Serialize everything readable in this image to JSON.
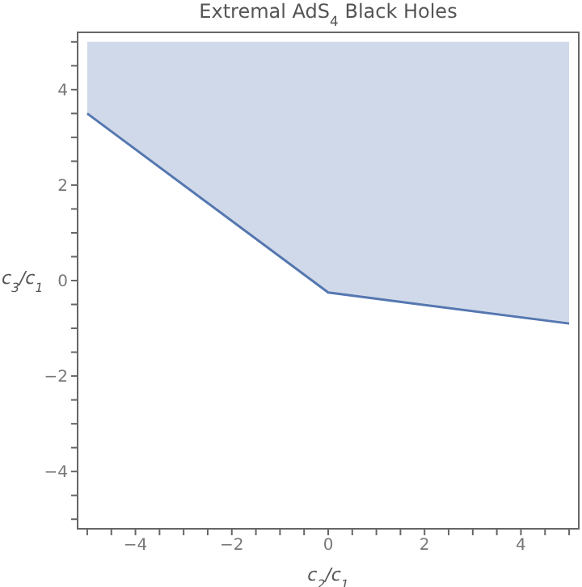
{
  "chart_data": {
    "type": "line",
    "title": "Extremal AdS$_{4}$ Black Holes",
    "xlabel": "c$_{2}$/c$_{1}$",
    "ylabel": "c$_{3}$/c$_{1}$",
    "x": [
      -5,
      0,
      5
    ],
    "series": [
      {
        "color": "#5577b0",
        "values": [
          3.5,
          -0.25,
          -0.9
        ],
        "lower": [
          3.5,
          -0.25,
          -0.9
        ],
        "upper": [
          5,
          5,
          5
        ]
      }
    ],
    "xlim": [
      -5.2,
      5.2
    ],
    "ylim": [
      -5.2,
      5.2
    ],
    "xticks": [
      {
        "value": -5,
        "label": null
      },
      {
        "value": -4.5,
        "label": null
      },
      -4,
      {
        "value": -3.5,
        "label": null
      },
      {
        "value": -3,
        "label": null
      },
      {
        "value": -2.5,
        "label": null
      },
      -2,
      {
        "value": -1.5,
        "label": null
      },
      {
        "value": -1,
        "label": null
      },
      {
        "value": -0.5,
        "label": null
      },
      0,
      {
        "value": 0.5,
        "label": null
      },
      {
        "value": 1,
        "label": null
      },
      {
        "value": 1.5,
        "label": null
      },
      2,
      {
        "value": 2.5,
        "label": null
      },
      {
        "value": 3,
        "label": null
      },
      {
        "value": 3.5,
        "label": null
      },
      4,
      {
        "value": 4.5,
        "label": null
      },
      {
        "value": 5,
        "label": null
      }
    ],
    "yticks": [
      {
        "value": -5,
        "label": null
      },
      {
        "value": -4.5,
        "label": null
      },
      -4,
      {
        "value": -3.5,
        "label": null
      },
      {
        "value": -3,
        "label": null
      },
      {
        "value": -2.5,
        "label": null
      },
      -2,
      {
        "value": -1.5,
        "label": null
      },
      {
        "value": -1,
        "label": null
      },
      {
        "value": -0.5,
        "label": null
      },
      0,
      {
        "value": 0.5,
        "label": null
      },
      {
        "value": 1,
        "label": null
      },
      {
        "value": 1.5,
        "label": null
      },
      2,
      {
        "value": 2.5,
        "label": null
      },
      {
        "value": 3,
        "label": null
      },
      {
        "value": 3.5,
        "label": null
      },
      4,
      {
        "value": 4.5,
        "label": null
      },
      {
        "value": 5,
        "label": null
      }
    ],
    "grid": false,
    "legend": false
  }
}
